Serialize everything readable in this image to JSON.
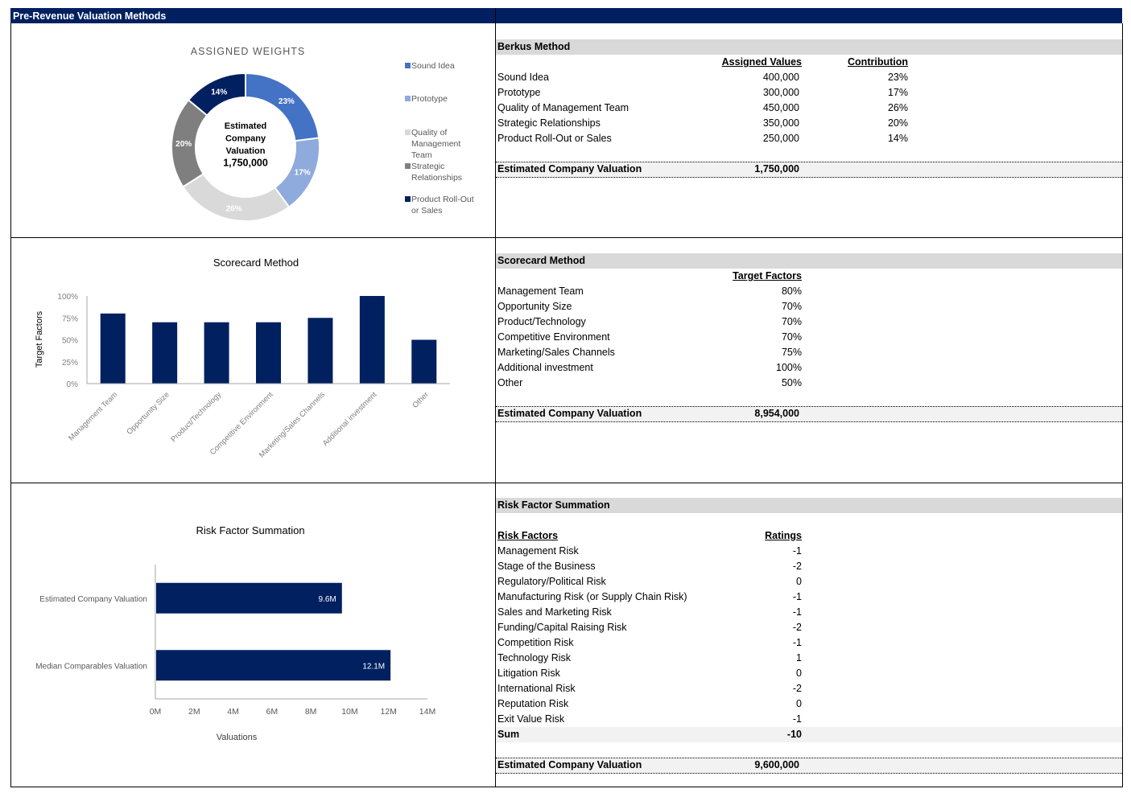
{
  "header": {
    "title": "Pre-Revenue Valuation Methods"
  },
  "colors": {
    "navy": "#002060",
    "section_band": "#d9d9d9",
    "total_band": "#f2f2f2"
  },
  "berkus": {
    "title": "Berkus Method",
    "col_values": "Assigned Values",
    "col_contribution": "Contribution",
    "rows": [
      {
        "label": "Sound Idea",
        "value": "400,000",
        "contribution": "23%"
      },
      {
        "label": "Prototype",
        "value": "300,000",
        "contribution": "17%"
      },
      {
        "label": "Quality of Management Team",
        "value": "450,000",
        "contribution": "26%"
      },
      {
        "label": "Strategic Relationships",
        "value": "350,000",
        "contribution": "20%"
      },
      {
        "label": "Product Roll-Out or Sales",
        "value": "250,000",
        "contribution": "14%"
      }
    ],
    "total_label": "Estimated Company Valuation",
    "total_value": "1,750,000"
  },
  "scorecard": {
    "title": "Scorecard Method",
    "col_factors": "Target Factors",
    "rows": [
      {
        "label": "Management Team",
        "value": "80%"
      },
      {
        "label": "Opportunity Size",
        "value": "70%"
      },
      {
        "label": "Product/Technology",
        "value": "70%"
      },
      {
        "label": "Competitive Environment",
        "value": "70%"
      },
      {
        "label": "Marketing/Sales Channels",
        "value": "75%"
      },
      {
        "label": "Additional investment",
        "value": "100%"
      },
      {
        "label": "Other",
        "value": "50%"
      }
    ],
    "total_label": "Estimated Company Valuation",
    "total_value": "8,954,000"
  },
  "risk": {
    "title": "Risk Factor Summation",
    "col_factors": "Risk Factors",
    "col_ratings": "Ratings",
    "rows": [
      {
        "label": "Management Risk",
        "value": "-1"
      },
      {
        "label": "Stage of the Business",
        "value": "-2"
      },
      {
        "label": "Regulatory/Political Risk",
        "value": "0"
      },
      {
        "label": "Manufacturing Risk (or Supply Chain Risk)",
        "value": "-1"
      },
      {
        "label": "Sales and Marketing Risk",
        "value": "-1"
      },
      {
        "label": "Funding/Capital Raising Risk",
        "value": "-2"
      },
      {
        "label": "Competition Risk",
        "value": "-1"
      },
      {
        "label": "Technology Risk",
        "value": "1"
      },
      {
        "label": "Litigation Risk",
        "value": "0"
      },
      {
        "label": "International Risk",
        "value": "-2"
      },
      {
        "label": "Reputation Risk",
        "value": "0"
      },
      {
        "label": "Exit Value Risk",
        "value": "-1"
      }
    ],
    "sum_label": "Sum",
    "sum_value": "-10",
    "total_label": "Estimated Company Valuation",
    "total_value": "9,600,000"
  },
  "chart_data": [
    {
      "type": "pie",
      "variant": "donut",
      "title": "ASSIGNED WEIGHTS",
      "center_label": [
        "Estimated",
        "Company",
        "Valuation",
        "1,750,000"
      ],
      "categories": [
        "Sound Idea",
        "Prototype",
        "Quality of Management Team",
        "Strategic Relationships",
        "Product Roll-Out or Sales"
      ],
      "legend_labels": [
        [
          "Sound Idea"
        ],
        [
          "Prototype"
        ],
        [
          "Quality of",
          "Management",
          "Team"
        ],
        [
          "Strategic",
          "Relationships"
        ],
        [
          "Product Roll-Out",
          "or Sales"
        ]
      ],
      "values": [
        23,
        17,
        26,
        20,
        14
      ],
      "data_labels": [
        "23%",
        "17%",
        "26%",
        "20%",
        "14%"
      ],
      "colors": [
        "#4472c4",
        "#8faadc",
        "#d9d9d9",
        "#7f7f7f",
        "#002060"
      ],
      "legend": "right"
    },
    {
      "type": "bar",
      "title": "Scorecard Method",
      "xlabel": "",
      "ylabel": "Target Factors",
      "categories": [
        "Management Team",
        "Opportunity Size",
        "Product/Technology",
        "Competitive Environment",
        "Marketing/Sales Channels",
        "Additional investment",
        "Other"
      ],
      "values": [
        80,
        70,
        70,
        70,
        75,
        100,
        50
      ],
      "ylim": [
        0,
        100
      ],
      "yticks": [
        "0%",
        "25%",
        "50%",
        "75%",
        "100%"
      ],
      "grid": false,
      "color": "#002060"
    },
    {
      "type": "bar",
      "orientation": "horizontal",
      "title": "Risk Factor Summation",
      "xlabel": "Valuations",
      "ylabel": "",
      "categories": [
        "Estimated Company Valuation",
        "Median Comparables Valuation"
      ],
      "values": [
        9.6,
        12.1
      ],
      "data_labels": [
        "9.6M",
        "12.1M"
      ],
      "units": "M",
      "xlim": [
        0,
        14
      ],
      "xticks": [
        "0M",
        "2M",
        "4M",
        "6M",
        "8M",
        "10M",
        "12M",
        "14M"
      ],
      "grid": false,
      "color": "#002060"
    }
  ]
}
